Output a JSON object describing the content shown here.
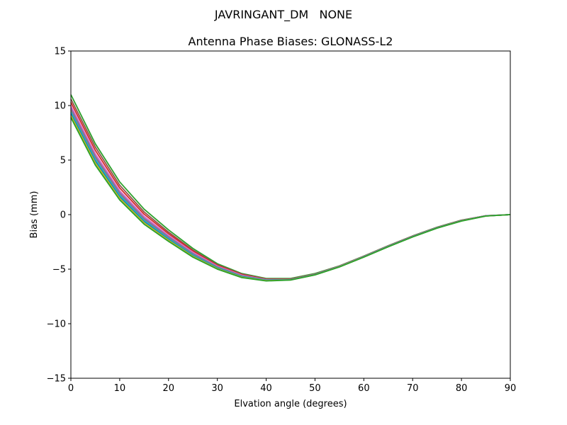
{
  "chart_data": {
    "type": "line",
    "suptitle": "JAVRINGANT_DM   NONE",
    "title": "Antenna Phase Biases: GLONASS-L2",
    "xlabel": "Elvation angle (degrees)",
    "ylabel": "Bias (mm)",
    "xlim": [
      0,
      90
    ],
    "ylim": [
      -15,
      15
    ],
    "xticks": [
      0,
      10,
      20,
      30,
      40,
      50,
      60,
      70,
      80,
      90
    ],
    "yticks": [
      -15,
      -10,
      -5,
      0,
      5,
      10,
      15
    ],
    "xtick_labels": [
      "0",
      "10",
      "20",
      "30",
      "40",
      "50",
      "60",
      "70",
      "80",
      "90"
    ],
    "ytick_labels": [
      "−15",
      "−10",
      "−5",
      "0",
      "5",
      "10",
      "15"
    ],
    "grid": false,
    "legend": "none",
    "x": [
      0,
      5,
      10,
      15,
      20,
      25,
      30,
      35,
      40,
      45,
      50,
      55,
      60,
      65,
      70,
      75,
      80,
      85,
      90
    ],
    "series": [
      {
        "color": "#2ca02c",
        "values": [
          11.0,
          6.5,
          3.0,
          0.5,
          -1.4,
          -3.1,
          -4.5,
          -5.4,
          -5.85,
          -5.85,
          -5.4,
          -4.7,
          -3.8,
          -2.85,
          -1.95,
          -1.15,
          -0.5,
          -0.1,
          0.0
        ]
      },
      {
        "color": "#8c564b",
        "values": [
          10.6,
          6.2,
          2.7,
          0.25,
          -1.6,
          -3.25,
          -4.6,
          -5.45,
          -5.9,
          -5.9,
          -5.45,
          -4.72,
          -3.82,
          -2.87,
          -1.97,
          -1.17,
          -0.52,
          -0.1,
          0.0
        ]
      },
      {
        "color": "#d62728",
        "values": [
          10.3,
          5.9,
          2.45,
          0.05,
          -1.75,
          -3.35,
          -4.65,
          -5.5,
          -5.92,
          -5.92,
          -5.46,
          -4.73,
          -3.83,
          -2.88,
          -1.98,
          -1.18,
          -0.53,
          -0.11,
          0.0
        ]
      },
      {
        "color": "#e377c2",
        "values": [
          10.0,
          5.6,
          2.2,
          -0.15,
          -1.9,
          -3.45,
          -4.72,
          -5.55,
          -5.95,
          -5.94,
          -5.47,
          -4.74,
          -3.84,
          -2.89,
          -1.99,
          -1.19,
          -0.54,
          -0.11,
          0.0
        ]
      },
      {
        "color": "#9467bd",
        "values": [
          9.8,
          5.4,
          2.05,
          -0.3,
          -2.0,
          -3.55,
          -4.78,
          -5.6,
          -5.97,
          -5.95,
          -5.48,
          -4.75,
          -3.85,
          -2.9,
          -2.0,
          -1.2,
          -0.55,
          -0.11,
          0.0
        ]
      },
      {
        "color": "#7f7f7f",
        "values": [
          9.6,
          5.25,
          1.9,
          -0.42,
          -2.1,
          -3.62,
          -4.82,
          -5.63,
          -5.99,
          -5.96,
          -5.49,
          -4.76,
          -3.86,
          -2.91,
          -2.01,
          -1.2,
          -0.55,
          -0.12,
          0.0
        ]
      },
      {
        "color": "#17becf",
        "values": [
          9.4,
          5.05,
          1.75,
          -0.55,
          -2.2,
          -3.7,
          -4.87,
          -5.67,
          -6.01,
          -5.97,
          -5.5,
          -4.77,
          -3.87,
          -2.92,
          -2.02,
          -1.21,
          -0.56,
          -0.12,
          0.0
        ]
      },
      {
        "color": "#1f77b4",
        "values": [
          9.25,
          4.9,
          1.62,
          -0.65,
          -2.28,
          -3.76,
          -4.91,
          -5.7,
          -6.03,
          -5.98,
          -5.51,
          -4.78,
          -3.88,
          -2.93,
          -2.03,
          -1.22,
          -0.57,
          -0.12,
          0.0
        ]
      },
      {
        "color": "#bcbd22",
        "values": [
          9.1,
          4.75,
          1.5,
          -0.75,
          -2.35,
          -3.82,
          -4.95,
          -5.73,
          -6.05,
          -5.99,
          -5.52,
          -4.79,
          -3.89,
          -2.94,
          -2.04,
          -1.23,
          -0.58,
          -0.13,
          0.0
        ]
      },
      {
        "color": "#2ca02c",
        "values": [
          8.9,
          4.55,
          1.35,
          -0.88,
          -2.45,
          -3.9,
          -5.0,
          -5.77,
          -6.08,
          -6.0,
          -5.53,
          -4.8,
          -3.9,
          -2.95,
          -2.05,
          -1.24,
          -0.59,
          -0.13,
          0.0
        ]
      }
    ]
  }
}
